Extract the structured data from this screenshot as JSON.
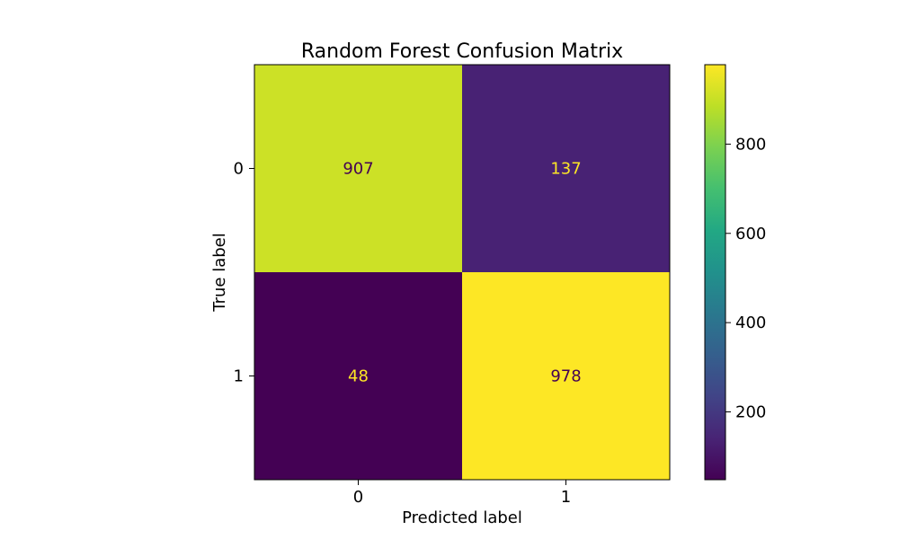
{
  "chart_data": {
    "type": "heatmap",
    "title": "Random Forest Confusion Matrix",
    "xlabel": "Predicted label",
    "ylabel": "True label",
    "x_categories": [
      "0",
      "1"
    ],
    "y_categories": [
      "0",
      "1"
    ],
    "matrix": [
      [
        907,
        137
      ],
      [
        48,
        978
      ]
    ],
    "colormap": "viridis",
    "colorbar": {
      "min": 48,
      "max": 978,
      "ticks": [
        200,
        400,
        600,
        800
      ]
    },
    "text_color_dark_cells": "#fde725",
    "text_color_light_cells": "#440154",
    "grid": false,
    "legend": "colorbar-right"
  }
}
